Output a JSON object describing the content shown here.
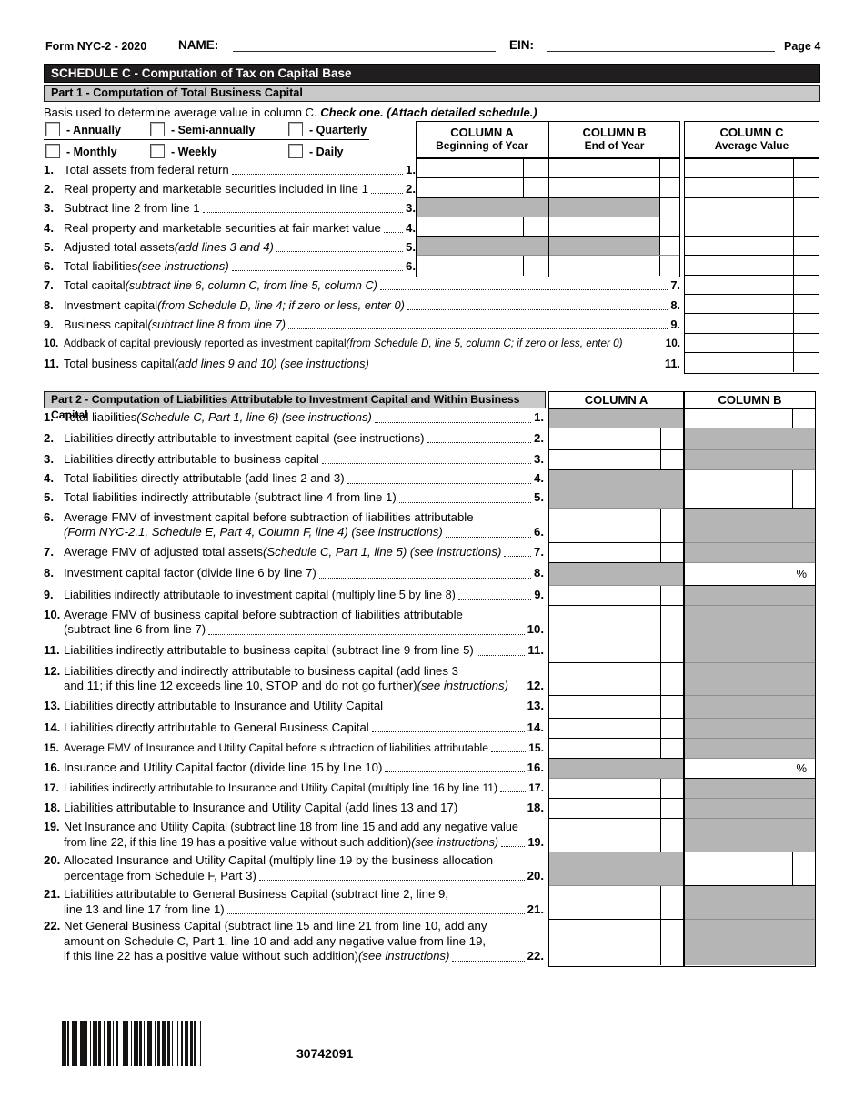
{
  "header": {
    "form": "Form NYC-2 - 2020",
    "name_label": "NAME:",
    "ein_label": "EIN:",
    "page": "Page 4"
  },
  "schedule_bar": "SCHEDULE C - Computation of Tax on Capital Base",
  "part1": {
    "title": "Part 1 - Computation of Total Business Capital",
    "basis_text": "Basis used to determine average value in column C.",
    "basis_bold": "Check one. (Attach detailed schedule.)",
    "checkboxes": [
      "- Annually",
      "- Semi-annually",
      "- Quarterly",
      "- Monthly",
      "- Weekly",
      "- Daily"
    ],
    "columns": [
      {
        "title": "COLUMN A",
        "sub": "Beginning of Year"
      },
      {
        "title": "COLUMN B",
        "sub": "End of Year"
      },
      {
        "title": "COLUMN C",
        "sub": "Average Value"
      }
    ],
    "rows": [
      {
        "num": "1.",
        "lines": [
          [
            [
              "Total assets from federal return",
              0
            ]
          ]
        ]
      },
      {
        "num": "2.",
        "lines": [
          [
            [
              "Real property and marketable securities included in line 1",
              0
            ]
          ]
        ]
      },
      {
        "num": "3.",
        "lines": [
          [
            [
              "Subtract line 2 from line 1",
              0
            ]
          ]
        ]
      },
      {
        "num": "4.",
        "lines": [
          [
            [
              "Real property and marketable securities at fair market value",
              0
            ]
          ]
        ]
      },
      {
        "num": "5.",
        "lines": [
          [
            [
              "Adjusted total assets ",
              0
            ],
            [
              "(add lines 3 and 4)",
              1
            ]
          ]
        ]
      },
      {
        "num": "6.",
        "lines": [
          [
            [
              "Total liabilities ",
              0
            ],
            [
              "(see instructions)",
              1
            ]
          ]
        ]
      },
      {
        "num": "7.",
        "lines": [
          [
            [
              "Total capital ",
              0
            ],
            [
              "(subtract line 6, column C, from line 5, column C)",
              1
            ]
          ]
        ]
      },
      {
        "num": "8.",
        "lines": [
          [
            [
              "Investment capital ",
              0
            ],
            [
              "(from Schedule D, line 4; if zero or less, enter 0)",
              1
            ]
          ]
        ]
      },
      {
        "num": "9.",
        "lines": [
          [
            [
              "Business capital ",
              0
            ],
            [
              "(subtract line 8 from line 7)",
              1
            ]
          ]
        ]
      },
      {
        "num": "10.",
        "lines": [
          [
            [
              "Addback of capital previously reported as investment capital ",
              0
            ],
            [
              "(from Schedule D, line 5, column C; if zero or less, enter 0)",
              1
            ]
          ]
        ]
      },
      {
        "num": "11.",
        "lines": [
          [
            [
              "Total business capital ",
              0
            ],
            [
              "(add lines 9 and 10) (see instructions)",
              1
            ]
          ]
        ]
      }
    ]
  },
  "part2": {
    "title": "Part 2 - Computation of Liabilities Attributable to Investment Capital and Within Business Capital",
    "columns": [
      "COLUMN A",
      "COLUMN B"
    ],
    "percent_symbol": "%",
    "rows": [
      {
        "num": "1.",
        "lines": [
          [
            [
              "Total liabilities ",
              0
            ],
            [
              "(Schedule C, Part 1, line 6) (see instructions)",
              1
            ]
          ]
        ]
      },
      {
        "num": "2.",
        "lines": [
          [
            [
              "Liabilities directly attributable to investment capital (see instructions)",
              0
            ]
          ]
        ]
      },
      {
        "num": "3.",
        "lines": [
          [
            [
              "Liabilities directly attributable to business capital",
              0
            ]
          ]
        ]
      },
      {
        "num": "4.",
        "lines": [
          [
            [
              "Total liabilities directly attributable (add lines 2 and 3)",
              0
            ]
          ]
        ]
      },
      {
        "num": "5.",
        "lines": [
          [
            [
              "Total liabilities indirectly attributable (subtract line 4 from line 1)",
              0
            ]
          ]
        ]
      },
      {
        "num": "6.",
        "lines": [
          [
            [
              "Average FMV of investment capital before subtraction of liabilities attributable",
              0
            ]
          ],
          [
            [
              "(Form NYC-2.1, Schedule E, Part 4, Column F, line 4) (see instructions)",
              1
            ]
          ]
        ]
      },
      {
        "num": "7.",
        "lines": [
          [
            [
              "Average FMV of adjusted total assets ",
              0
            ],
            [
              "(Schedule C, Part 1, line 5) (see instructions)",
              1
            ]
          ]
        ]
      },
      {
        "num": "8.",
        "lines": [
          [
            [
              "Investment capital factor (divide line 6 by line 7)",
              0
            ]
          ]
        ]
      },
      {
        "num": "9.",
        "lines": [
          [
            [
              "Liabilities indirectly attributable to investment capital (multiply line 5 by line 8)",
              0
            ]
          ]
        ]
      },
      {
        "num": "10.",
        "lines": [
          [
            [
              "Average FMV of business capital before subtraction of liabilities attributable",
              0
            ]
          ],
          [
            [
              "(subtract line 6 from line 7)",
              0
            ]
          ]
        ]
      },
      {
        "num": "11.",
        "lines": [
          [
            [
              "Liabilities indirectly attributable to business capital (subtract line 9 from line 5)",
              0
            ]
          ]
        ]
      },
      {
        "num": "12.",
        "lines": [
          [
            [
              "Liabilities directly and indirectly attributable to business capital (add lines 3",
              0
            ]
          ],
          [
            [
              "and 11; if this line 12 exceeds line 10, STOP and do not go further) ",
              0
            ],
            [
              "(see instructions)",
              1
            ]
          ]
        ]
      },
      {
        "num": "13.",
        "lines": [
          [
            [
              "Liabilities directly attributable to Insurance and Utility Capital",
              0
            ]
          ]
        ]
      },
      {
        "num": "14.",
        "lines": [
          [
            [
              "Liabilities directly attributable to General Business Capital",
              0
            ]
          ]
        ]
      },
      {
        "num": "15.",
        "lines": [
          [
            [
              "Average FMV of Insurance and Utility Capital before subtraction of liabilities attributable",
              0
            ]
          ]
        ]
      },
      {
        "num": "16.",
        "lines": [
          [
            [
              "Insurance and Utility Capital factor (divide line 15 by line 10)",
              0
            ]
          ]
        ]
      },
      {
        "num": "17.",
        "lines": [
          [
            [
              "Liabilities indirectly attributable to Insurance and Utility Capital (multiply line 16 by line 11)",
              0
            ]
          ]
        ]
      },
      {
        "num": "18.",
        "lines": [
          [
            [
              "Liabilities attributable to Insurance and Utility Capital (add lines 13 and 17)",
              0
            ]
          ]
        ]
      },
      {
        "num": "19.",
        "lines": [
          [
            [
              "Net Insurance and Utility Capital (subtract line 18 from line 15 and add any negative value",
              0
            ]
          ],
          [
            [
              "from line 22, if this line 19 has a positive value without such addition) ",
              0
            ],
            [
              "(see instructions)",
              1
            ]
          ]
        ]
      },
      {
        "num": "20.",
        "lines": [
          [
            [
              "Allocated Insurance and Utility Capital (multiply line 19 by the business allocation",
              0
            ]
          ],
          [
            [
              "percentage from Schedule F, Part 3)",
              0
            ]
          ]
        ]
      },
      {
        "num": "21.",
        "lines": [
          [
            [
              "Liabilities attributable to General Business Capital (subtract line 2, line 9,",
              0
            ]
          ],
          [
            [
              "line 13 and line 17 from line 1)",
              0
            ]
          ]
        ]
      },
      {
        "num": "22.",
        "lines": [
          [
            [
              "Net General Business Capital (subtract line 15 and line 21 from line 10, add any",
              0
            ]
          ],
          [
            [
              "amount on Schedule C, Part 1, line 10 and add any negative value from line 19,",
              0
            ]
          ],
          [
            [
              "if this line 22 has a positive value without such addition) ",
              0
            ],
            [
              "(see instructions)",
              1
            ]
          ]
        ]
      }
    ]
  },
  "footer": {
    "barcode_number": "30742091"
  },
  "colors": {
    "bar_black": "#221e1f",
    "header_gray": "#c9c9c9",
    "cell_gray": "#b5b5b5"
  }
}
